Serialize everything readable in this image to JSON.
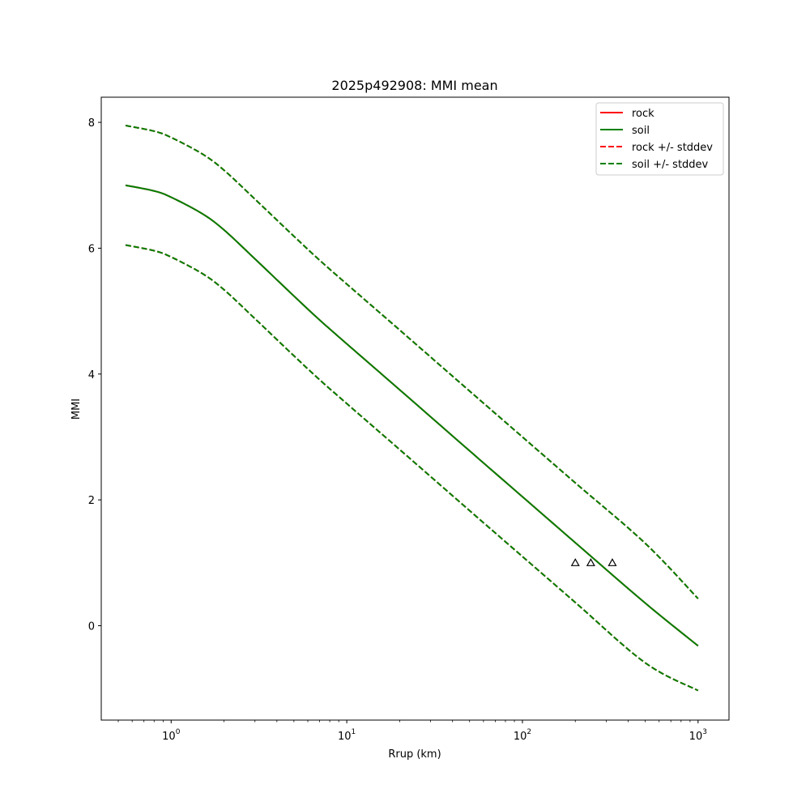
{
  "chart_data": {
    "type": "line",
    "title": "2025p492908: MMI mean",
    "xlabel": "Rrup (km)",
    "ylabel": "MMI",
    "x_scale": "log",
    "xlim": [
      0.4,
      1500
    ],
    "ylim": [
      -1.5,
      8.4
    ],
    "x_ticks": [
      1,
      10,
      100,
      1000
    ],
    "x_tick_labels": [
      {
        "base": "10",
        "exp": "0"
      },
      {
        "base": "10",
        "exp": "1"
      },
      {
        "base": "10",
        "exp": "2"
      },
      {
        "base": "10",
        "exp": "3"
      }
    ],
    "y_ticks": [
      0,
      2,
      4,
      6,
      8
    ],
    "y_tick_labels": [
      "0",
      "2",
      "4",
      "6",
      "8"
    ],
    "grid": false,
    "legend_position": "top-right",
    "series": [
      {
        "name": "rock",
        "color": "#ff0000",
        "dash": "solid",
        "x": [
          0.55,
          0.8,
          1,
          1.5,
          2,
          3,
          5,
          7,
          10,
          20,
          50,
          100,
          200,
          500,
          1000
        ],
        "y": [
          7.0,
          6.91,
          6.81,
          6.55,
          6.29,
          5.83,
          5.24,
          4.86,
          4.48,
          3.75,
          2.78,
          2.05,
          1.32,
          0.36,
          -0.32
        ]
      },
      {
        "name": "soil",
        "color": "#008000",
        "dash": "solid",
        "x": [
          0.55,
          0.8,
          1,
          1.5,
          2,
          3,
          5,
          7,
          10,
          20,
          50,
          100,
          200,
          500,
          1000
        ],
        "y": [
          7.0,
          6.91,
          6.81,
          6.55,
          6.29,
          5.83,
          5.24,
          4.86,
          4.48,
          3.75,
          2.78,
          2.05,
          1.32,
          0.36,
          -0.32
        ]
      },
      {
        "name": "rock +/- stddev",
        "color": "#ff0000",
        "dash": "dashed",
        "x": [
          0.55,
          0.8,
          1,
          1.5,
          2,
          3,
          5,
          7,
          10,
          20,
          50,
          100,
          200,
          500,
          1000
        ],
        "y": [
          7.95,
          7.86,
          7.76,
          7.5,
          7.24,
          6.78,
          6.19,
          5.81,
          5.43,
          4.7,
          3.73,
          3.0,
          2.27,
          1.31,
          0.43
        ]
      },
      {
        "name": "",
        "color": "#ff0000",
        "dash": "dashed",
        "x": [
          0.55,
          0.8,
          1,
          1.5,
          2,
          3,
          5,
          7,
          10,
          20,
          50,
          100,
          200,
          500,
          1000
        ],
        "y": [
          6.05,
          5.96,
          5.86,
          5.6,
          5.34,
          4.88,
          4.29,
          3.91,
          3.53,
          2.8,
          1.83,
          1.1,
          0.37,
          -0.59,
          -1.03
        ]
      },
      {
        "name": "soil +/- stddev",
        "color": "#008000",
        "dash": "dashed",
        "x": [
          0.55,
          0.8,
          1,
          1.5,
          2,
          3,
          5,
          7,
          10,
          20,
          50,
          100,
          200,
          500,
          1000
        ],
        "y": [
          7.95,
          7.86,
          7.76,
          7.5,
          7.24,
          6.78,
          6.19,
          5.81,
          5.43,
          4.7,
          3.73,
          3.0,
          2.27,
          1.31,
          0.43
        ]
      },
      {
        "name": "",
        "color": "#008000",
        "dash": "dashed",
        "x": [
          0.55,
          0.8,
          1,
          1.5,
          2,
          3,
          5,
          7,
          10,
          20,
          50,
          100,
          200,
          500,
          1000
        ],
        "y": [
          6.05,
          5.96,
          5.86,
          5.6,
          5.34,
          4.88,
          4.29,
          3.91,
          3.53,
          2.8,
          1.83,
          1.1,
          0.37,
          -0.59,
          -1.03
        ]
      }
    ],
    "observations": {
      "marker": "triangle-open",
      "color": "#000000",
      "x": [
        200,
        245,
        325
      ],
      "y": [
        1.0,
        1.0,
        1.0
      ]
    },
    "legend": [
      {
        "label": "rock",
        "color": "#ff0000",
        "dash": "solid"
      },
      {
        "label": "soil",
        "color": "#008000",
        "dash": "solid"
      },
      {
        "label": "rock +/- stddev",
        "color": "#ff0000",
        "dash": "dashed"
      },
      {
        "label": "soil +/- stddev",
        "color": "#008000",
        "dash": "dashed"
      }
    ]
  }
}
